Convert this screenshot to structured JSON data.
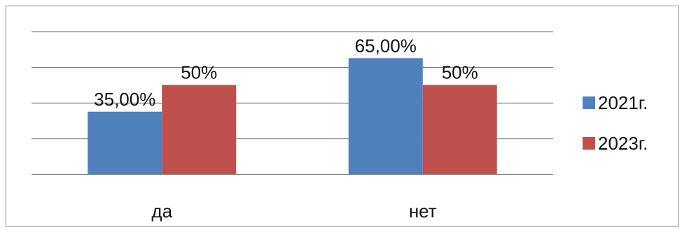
{
  "chart_data": {
    "type": "bar",
    "title": "",
    "xlabel": "",
    "ylabel": "",
    "categories": [
      "да",
      "нет"
    ],
    "series": [
      {
        "name": "2021г.",
        "values": [
          35,
          65
        ],
        "labels": [
          "35,00%",
          "65,00%"
        ],
        "color": "#4F81BD"
      },
      {
        "name": "2023г.",
        "values": [
          50,
          50
        ],
        "labels": [
          "50%",
          "50%"
        ],
        "color": "#C0504D"
      }
    ],
    "ylim": [
      0,
      80
    ],
    "y_axis_visible": false,
    "grid": true,
    "legend": "right"
  }
}
